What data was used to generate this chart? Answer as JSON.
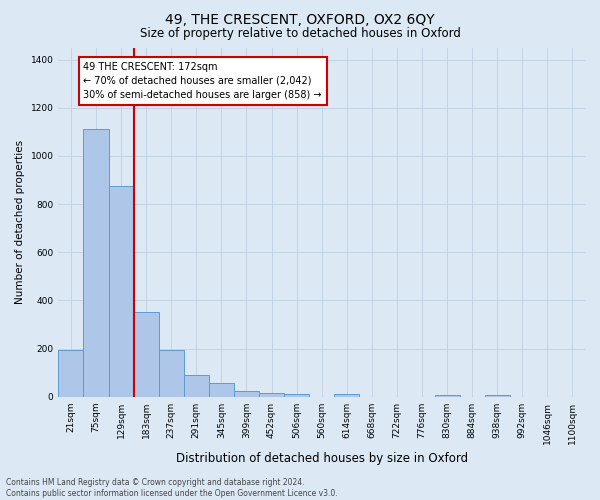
{
  "title": "49, THE CRESCENT, OXFORD, OX2 6QY",
  "subtitle": "Size of property relative to detached houses in Oxford",
  "xlabel": "Distribution of detached houses by size in Oxford",
  "ylabel": "Number of detached properties",
  "categories": [
    "21sqm",
    "75sqm",
    "129sqm",
    "183sqm",
    "237sqm",
    "291sqm",
    "345sqm",
    "399sqm",
    "452sqm",
    "506sqm",
    "560sqm",
    "614sqm",
    "668sqm",
    "722sqm",
    "776sqm",
    "830sqm",
    "884sqm",
    "938sqm",
    "992sqm",
    "1046sqm",
    "1100sqm"
  ],
  "values": [
    193,
    1113,
    876,
    352,
    193,
    90,
    55,
    23,
    17,
    10,
    0,
    10,
    0,
    0,
    0,
    8,
    0,
    8,
    0,
    0,
    0
  ],
  "bar_color": "#aec6e8",
  "bar_edge_color": "#5b9bd5",
  "background_color": "#dce9f5",
  "vline_color": "#cc0000",
  "annotation_title": "49 THE CRESCENT: 172sqm",
  "annotation_line1": "← 70% of detached houses are smaller (2,042)",
  "annotation_line2": "30% of semi-detached houses are larger (858) →",
  "annotation_box_color": "#ffffff",
  "annotation_box_edge": "#cc0000",
  "ylim": [
    0,
    1450
  ],
  "yticks": [
    0,
    200,
    400,
    600,
    800,
    1000,
    1200,
    1400
  ],
  "footer_line1": "Contains HM Land Registry data © Crown copyright and database right 2024.",
  "footer_line2": "Contains public sector information licensed under the Open Government Licence v3.0.",
  "grid_color": "#c0cfe0",
  "title_fontsize": 10,
  "subtitle_fontsize": 8.5,
  "ylabel_fontsize": 7.5,
  "xlabel_fontsize": 8.5,
  "tick_fontsize": 6.5,
  "annot_fontsize": 7,
  "footer_fontsize": 5.5
}
